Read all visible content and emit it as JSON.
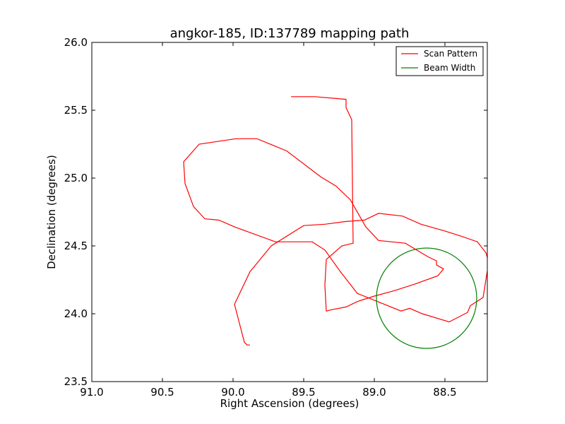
{
  "chart_data": {
    "type": "line",
    "title": "angkor-185, ID:137789 mapping path",
    "xlabel": "Right Ascension (degrees)",
    "ylabel": "Declination (degrees)",
    "xlim": [
      91.0,
      88.2
    ],
    "ylim": [
      23.5,
      26.0
    ],
    "x_ticks": [
      "91.0",
      "90.5",
      "90.0",
      "89.5",
      "89.0",
      "88.5"
    ],
    "x_tick_values": [
      91.0,
      90.5,
      90.0,
      89.5,
      89.0,
      88.5
    ],
    "y_ticks": [
      "23.5",
      "24.0",
      "24.5",
      "25.0",
      "25.5",
      "26.0"
    ],
    "y_tick_values": [
      23.5,
      24.0,
      24.5,
      25.0,
      25.5,
      26.0
    ],
    "grid": false,
    "legend_position": "top-right",
    "series": [
      {
        "name": "Scan Pattern",
        "color": "#ff0000",
        "x": [
          89.88,
          89.9,
          89.92,
          89.99,
          89.88,
          89.73,
          89.5,
          89.35,
          89.2,
          89.07,
          88.97,
          88.8,
          88.67,
          88.5,
          88.38,
          88.27,
          88.21,
          88.19,
          88.23,
          88.32,
          88.34,
          88.47,
          88.66,
          88.75,
          88.81,
          89.12,
          89.24,
          89.35,
          89.44,
          89.54,
          89.7,
          89.99,
          90.1,
          90.2,
          90.28,
          90.34,
          90.35,
          90.24,
          89.98,
          89.83,
          89.62,
          89.38,
          89.27,
          89.17,
          89.06,
          88.97,
          88.78,
          88.62,
          88.56,
          88.56,
          88.51,
          88.55,
          88.71,
          88.86,
          89.0,
          89.12,
          89.2,
          89.3,
          89.34,
          89.35,
          89.34,
          89.23,
          89.15,
          89.16,
          89.2,
          89.2,
          89.42,
          89.51,
          89.59
        ],
        "y": [
          23.77,
          23.77,
          23.79,
          24.07,
          24.31,
          24.5,
          24.65,
          24.66,
          24.68,
          24.69,
          24.74,
          24.72,
          24.66,
          24.61,
          24.57,
          24.53,
          24.45,
          24.38,
          24.12,
          24.06,
          24.01,
          23.94,
          24.0,
          24.04,
          24.02,
          24.15,
          24.31,
          24.47,
          24.53,
          24.53,
          24.53,
          24.64,
          24.69,
          24.7,
          24.79,
          24.96,
          25.12,
          25.25,
          25.29,
          25.29,
          25.2,
          25.01,
          24.94,
          24.84,
          24.64,
          24.54,
          24.52,
          24.42,
          24.39,
          24.36,
          24.33,
          24.28,
          24.22,
          24.17,
          24.13,
          24.09,
          24.05,
          24.03,
          24.02,
          24.21,
          24.4,
          24.5,
          24.52,
          25.43,
          25.52,
          25.58,
          25.6,
          25.6,
          25.6
        ],
        "values_note": ""
      },
      {
        "name": "Beam Width",
        "color": "#008000",
        "x": [],
        "y": []
      }
    ]
  }
}
